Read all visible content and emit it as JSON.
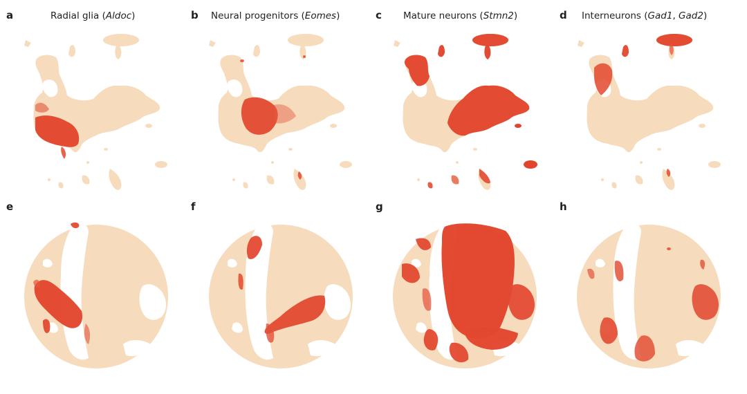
{
  "colors": {
    "low": "#f6dcbc",
    "mid": "#eda587",
    "high": "#e2452d"
  },
  "panels": [
    {
      "letter": "a",
      "title": {
        "pre": "Radial glia (",
        "gene": "Aldoc",
        "post": ")"
      },
      "embedding": "UMAP"
    },
    {
      "letter": "b",
      "title": {
        "pre": "Neural progenitors (",
        "gene": "Eomes",
        "post": ")"
      },
      "embedding": "UMAP"
    },
    {
      "letter": "c",
      "title": {
        "pre": "Mature neurons (",
        "gene": "Stmn2",
        "post": ")"
      },
      "embedding": "UMAP"
    },
    {
      "letter": "d",
      "title": {
        "pre": "Interneurons (",
        "gene": "Gad1",
        "mid": ", ",
        "gene2": "Gad2",
        "post": ")"
      },
      "embedding": "UMAP"
    },
    {
      "letter": "e",
      "embedding": "circular"
    },
    {
      "letter": "f",
      "embedding": "circular"
    },
    {
      "letter": "g",
      "embedding": "circular"
    },
    {
      "letter": "h",
      "embedding": "circular"
    }
  ]
}
